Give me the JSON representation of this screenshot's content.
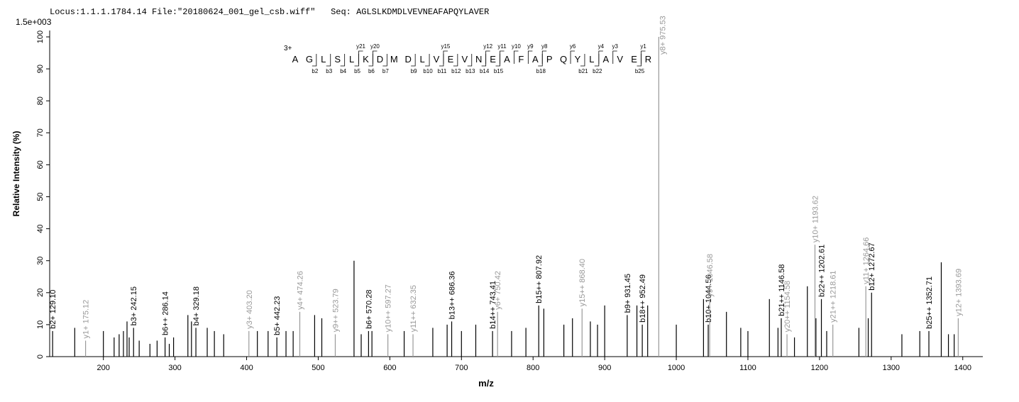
{
  "chart_data": {
    "type": "spectrum",
    "header": "Locus:1.1.1.1784.14 File:\"20180624_001_gel_csb.wiff\"   Seq: AGLSLKDMDLVEVNEAFAPQYLAVER",
    "max_intensity_label": "1.5e+003",
    "ylabel": "Relative  Intensity (%)",
    "xlabel": "m/z",
    "xlim": [
      125,
      1428
    ],
    "ylim": [
      0,
      102
    ],
    "xticks": [
      200,
      300,
      400,
      500,
      600,
      700,
      800,
      900,
      1000,
      1100,
      1200,
      1300,
      1400
    ],
    "yticks": [
      0,
      10,
      20,
      30,
      40,
      50,
      60,
      70,
      80,
      90,
      100
    ],
    "color": "#000000",
    "y_ion_color": "#999999",
    "peaks": {
      "x": [
        129.1,
        175.12,
        242.15,
        286.14,
        329.18,
        403.2,
        442.23,
        474.26,
        523.79,
        570.28,
        597.27,
        632.35,
        686.36,
        743.41,
        750.42,
        807.92,
        868.4,
        931.45,
        952.49,
        975.53,
        1044.56,
        1046.58,
        1146.58,
        1154.58,
        1193.62,
        1202.61,
        1218.61,
        1264.66,
        1272.67,
        1352.71,
        1393.69,
        160,
        200,
        215,
        222,
        228,
        233,
        236,
        250,
        265,
        275,
        292,
        298,
        318,
        323,
        345,
        355,
        368,
        415,
        430,
        455,
        465,
        495,
        505,
        550,
        560,
        575,
        620,
        660,
        680,
        700,
        720,
        770,
        790,
        815,
        843,
        855,
        880,
        890,
        900,
        945,
        960,
        1000,
        1038,
        1070,
        1090,
        1100,
        1130,
        1142,
        1165,
        1183,
        1195,
        1210,
        1255,
        1268,
        1315,
        1340,
        1370,
        1380,
        1388
      ],
      "values": [
        8,
        5,
        9,
        6,
        9,
        8,
        6,
        14,
        7,
        8,
        7,
        7,
        11,
        8,
        14,
        16,
        15,
        13,
        10,
        100,
        10,
        18,
        12,
        7,
        35,
        18,
        10,
        22,
        20,
        8,
        12,
        9,
        8,
        6,
        7,
        8,
        11,
        6,
        5,
        4,
        5,
        4,
        6,
        13,
        11,
        9,
        8,
        7,
        8,
        8,
        8,
        8,
        13,
        12,
        30,
        7,
        8,
        8,
        9,
        10,
        8,
        10,
        8,
        9,
        15,
        10,
        12,
        11,
        10,
        16,
        16,
        16,
        10,
        18,
        14,
        9,
        8,
        18,
        9,
        6,
        22,
        12,
        8,
        9,
        12,
        7,
        8,
        29.5,
        7,
        7
      ],
      "labels": [
        "b2+ 129.10",
        "y1+ 175.12",
        "b3+ 242.15",
        "b6++ 286.14",
        "b4+ 329.18",
        "y3+ 403.20",
        "b5+ 442.23",
        "y4+ 474.26",
        "y9++ 523.79",
        "b6+ 570.28",
        "y10++ 597.27",
        "y11++ 632.35",
        "b13++ 686.36",
        "b14++ 743.41",
        "y6+ 750.42",
        "b15++ 807.92",
        "y15++ 868.40",
        "b9+ 931.45",
        "b18++ 952.49",
        "y8+ 975.53",
        "b10+ 1044.56",
        "y9+ 1046.58",
        "b21++ 1146.58",
        "y20++ 1154.58",
        "y10+ 1193.62",
        "b22++ 1202.61",
        "y21++ 1218.61",
        "y11+ 1264.66",
        "b12+ 1272.67",
        "b25++ 1352.71",
        "y12+ 1393.69",
        null,
        null,
        null,
        null,
        null,
        null,
        null,
        null,
        null,
        null,
        null,
        null,
        null,
        null,
        null,
        null,
        null,
        null,
        null,
        null,
        null,
        null,
        null,
        null,
        null,
        null,
        null,
        null,
        null,
        null,
        null,
        null,
        null,
        null,
        null,
        null,
        null,
        null,
        null,
        null,
        null,
        null,
        null,
        null,
        null,
        null,
        null,
        null,
        null,
        null,
        null,
        null,
        null,
        null,
        null,
        null,
        null,
        null,
        null
      ]
    },
    "sequence": {
      "charge": "3+",
      "residues": [
        "A",
        "G",
        "L",
        "S",
        "L",
        "K",
        "D",
        "M",
        "D",
        "L",
        "V",
        "E",
        "V",
        "N",
        "E",
        "A",
        "F",
        "A",
        "P",
        "Q",
        "Y",
        "L",
        "A",
        "V",
        "E",
        "R"
      ],
      "b_ions": [
        "b2",
        "b3",
        "b4",
        "b5",
        "b6",
        "b7",
        "b9",
        "b10",
        "b11",
        "b12",
        "b13",
        "b14",
        "b15",
        "b18",
        "b21",
        "b22",
        "b25"
      ],
      "y_ions": [
        "y21",
        "y20",
        "y15",
        "y12",
        "y11",
        "y10",
        "y9",
        "y8",
        "y6",
        "y4",
        "y3",
        "y1"
      ]
    }
  }
}
